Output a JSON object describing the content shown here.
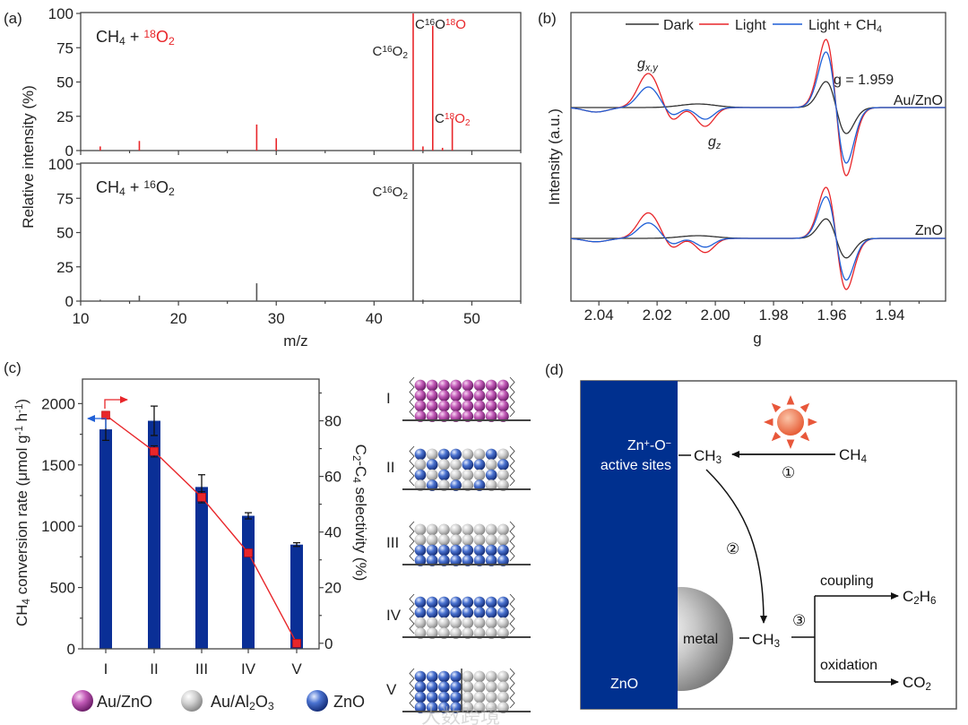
{
  "panel_labels": {
    "a": "(a)",
    "b": "(b)",
    "c": "(c)",
    "d": "(d)"
  },
  "colors": {
    "red": "#e8262a",
    "blue": "#1f5fd6",
    "black": "#333333",
    "bar": "#0a2f96",
    "zno_column": "#00308f",
    "sun": "#e8573a"
  },
  "chart_data": [
    {
      "id": "a",
      "type": "bar",
      "subtype": "mass-spectrum",
      "xlabel": "m/z",
      "ylabel": "Relative intensity (%)",
      "xlim": [
        10,
        55
      ],
      "ylim": [
        0,
        100
      ],
      "xticks": [
        10,
        20,
        30,
        40,
        50
      ],
      "yticks": [
        0,
        25,
        50,
        75,
        100
      ],
      "series": [
        {
          "name": "CH_{4} + [r]^{18}O_{2}[/r]",
          "color": "#e8262a",
          "x": [
            12,
            16,
            28,
            30,
            44,
            45,
            46,
            47,
            48
          ],
          "values": [
            3,
            7,
            19,
            9,
            100,
            3,
            91,
            2,
            23
          ],
          "annotations": [
            {
              "text": "C^{16}O_{2}",
              "x": 44
            },
            {
              "text": "C^{16}O[r]^{18}O[/r]",
              "x": 46
            },
            {
              "text": "C[r]^{18}O_{2}[/r]",
              "x": 48
            }
          ]
        },
        {
          "name": "CH_{4} + ^{16}O_{2}",
          "color": "#555555",
          "x": [
            12,
            16,
            28,
            44,
            45
          ],
          "values": [
            1,
            4,
            13,
            100,
            1
          ],
          "annotations": [
            {
              "text": "C^{16}O_{2}",
              "x": 44
            }
          ]
        }
      ]
    },
    {
      "id": "b",
      "type": "line",
      "subtype": "EPR",
      "xlabel": "g",
      "ylabel": "Intensity (a.u.)",
      "xlim": [
        2.0496,
        1.9209
      ],
      "xticks": [
        "2.04",
        "2.02",
        "2.00",
        "1.98",
        "1.96",
        "1.94"
      ],
      "legend": {
        "position": "top",
        "entries": [
          "Dark",
          "Light",
          "Light + CH_{4}"
        ]
      },
      "annotations": [
        "g_{x,y}",
        "g_{z}",
        "g = 1.959"
      ],
      "samples": [
        {
          "name": "Au/ZnO",
          "scale": 1.0
        },
        {
          "name": "ZnO",
          "scale": 0.75
        }
      ],
      "series": [
        {
          "name": "Dark",
          "color": "#333333",
          "components": [
            {
              "shape": "deriv",
              "g": 1.9585,
              "amp": 29,
              "width": 0.0035
            },
            {
              "shape": "gauss",
              "g": 2.006,
              "amp": 4,
              "width": 0.006
            }
          ]
        },
        {
          "name": "Light",
          "color": "#e8262a",
          "components": [
            {
              "shape": "deriv",
              "g": 1.9585,
              "amp": 76,
              "width": 0.0035
            },
            {
              "shape": "gauss",
              "g": 2.023,
              "amp": 38,
              "width": 0.0035
            },
            {
              "shape": "gauss",
              "g": 2.0148,
              "amp": -15,
              "width": 0.0025
            },
            {
              "shape": "gauss",
              "g": 2.0035,
              "amp": -21,
              "width": 0.003
            },
            {
              "shape": "gauss",
              "g": 2.041,
              "amp": -5,
              "width": 0.004
            }
          ]
        },
        {
          "name": "Light + CH4",
          "color": "#1f5fd6",
          "components": [
            {
              "shape": "deriv",
              "g": 1.9585,
              "amp": 62,
              "width": 0.0035
            },
            {
              "shape": "gauss",
              "g": 2.023,
              "amp": 23,
              "width": 0.0035
            },
            {
              "shape": "gauss",
              "g": 2.0148,
              "amp": -9,
              "width": 0.0025
            },
            {
              "shape": "gauss",
              "g": 2.0035,
              "amp": -13,
              "width": 0.003
            },
            {
              "shape": "gauss",
              "g": 2.041,
              "amp": -5,
              "width": 0.004
            }
          ]
        }
      ]
    },
    {
      "id": "c",
      "type": "bar",
      "categories": [
        "I",
        "II",
        "III",
        "IV",
        "V"
      ],
      "ylabel": "CH_{4} conversion rate (μmol g^{-1} h^{-1})",
      "ylim": [
        0,
        2200
      ],
      "yticks": [
        0,
        500,
        1000,
        1500,
        2000
      ],
      "bars": {
        "name": "CH4 conversion rate",
        "values": [
          1790,
          1860,
          1320,
          1085,
          850
        ],
        "errors": [
          90,
          120,
          100,
          25,
          15
        ]
      },
      "y2label": "C_{2}-C_{4} selectivity (%)",
      "y2lim": [
        -2,
        95
      ],
      "y2ticks": [
        0,
        20,
        40,
        60,
        80
      ],
      "line": {
        "name": "C2-C4 selectivity",
        "values": [
          82,
          69,
          52.5,
          32.5,
          0
        ],
        "errors": [
          1,
          2,
          2,
          1,
          0.5
        ]
      },
      "legend": [
        {
          "label": "Au/ZnO",
          "sphere": "magenta"
        },
        {
          "label": "Au/Al_{2}O_{3}",
          "sphere": "grey"
        },
        {
          "label": "ZnO",
          "sphere": "blue"
        }
      ]
    }
  ],
  "structures": [
    {
      "label": "I",
      "rows": [
        "MMMMMMMM",
        "MMMMMMMM",
        "MMMMMMMM",
        "MMMMMMMM"
      ]
    },
    {
      "label": "II",
      "rows": [
        "BGBBGGBG",
        "GBGGBBGB",
        "BGBGGGBG",
        "GBGBGBGG"
      ]
    },
    {
      "label": "III",
      "rows": [
        "GGGGGGGG",
        "GGGGGGGG",
        "BBBBBBBB",
        "BBBBBBBB"
      ]
    },
    {
      "label": "IV",
      "rows": [
        "BBBBBBBB",
        "BBBBBBBB",
        "GGGGGGGG",
        "GGGGGGGG"
      ]
    },
    {
      "label": "V",
      "rows": [
        "BBBBGGGG",
        "BBBBGGGG",
        "BBBBGGGG",
        "BBBBGGGG"
      ],
      "divider": true
    }
  ],
  "diagram": {
    "active_sites_line1": "Zn^{+}-O^{−}",
    "active_sites_line2": "active sites",
    "ch3_top": "CH_{3}",
    "ch4": "CH_{4}",
    "step1": "①",
    "step2": "②",
    "step3": "③",
    "metal": "metal",
    "ch3_bottom": "CH_{3}",
    "coupling": "coupling",
    "c2h6": "C_{2}H_{6}",
    "oxidation": "oxidation",
    "co2": "CO_{2}",
    "zno": "ZnO"
  },
  "watermark": "大数跨境"
}
